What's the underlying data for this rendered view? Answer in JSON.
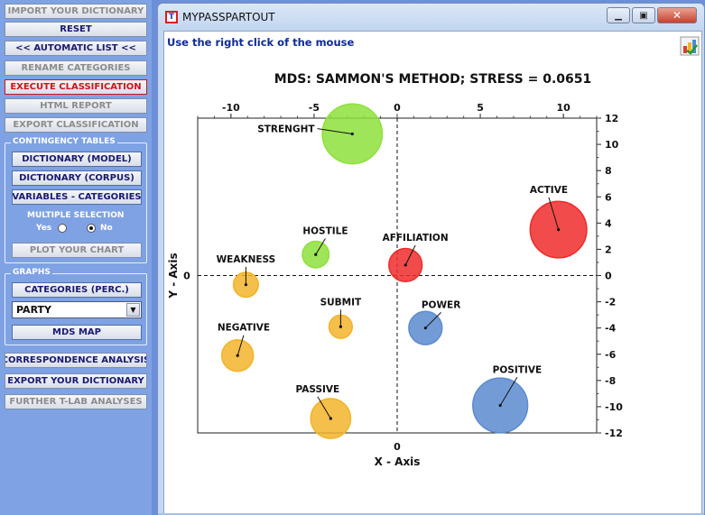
{
  "sidebar": {
    "import_dictionary": "IMPORT YOUR DICTIONARY",
    "reset": "RESET",
    "automatic_list": "<< AUTOMATIC LIST <<",
    "rename_categories": "RENAME CATEGORIES",
    "execute_classification": "EXECUTE CLASSIFICATION",
    "html_report": "HTML REPORT",
    "export_classification": "EXPORT CLASSIFICATION",
    "contingency": {
      "title": "CONTINGENCY TABLES",
      "dictionary_model": "DICTIONARY (MODEL)",
      "dictionary_corpus": "DICTIONARY (CORPUS)",
      "variables_categories": "VARIABLES - CATEGORIES",
      "multiple_selection": "MULTIPLE SELECTION",
      "yes": "Yes",
      "no": "No",
      "plot_chart": "PLOT YOUR CHART"
    },
    "graphs": {
      "title": "GRAPHS",
      "categories_perc": "CATEGORIES  (PERC.)",
      "select_value": "PARTY",
      "mds_map": "MDS MAP"
    },
    "correspondence_analysis": "CORRESPONDENCE ANALYSIS",
    "export_dictionary": "EXPORT YOUR DICTIONARY",
    "further_analyses": "FURTHER T-LAB ANALYSES"
  },
  "window": {
    "title": "MYPASSPARTOUT",
    "app_icon": "T",
    "hint": "Use the right click of the mouse",
    "icons": [
      "minimize-icon",
      "maximize-icon",
      "close-icon",
      "chart-tool-icon"
    ]
  },
  "chart_data": {
    "type": "scatter",
    "title": "MDS: SAMMON'S METHOD; STRESS = 0.0651",
    "xlabel": "X - Axis",
    "ylabel": "Y - Axis",
    "xlim": [
      -12,
      12
    ],
    "ylim": [
      -12,
      12
    ],
    "x_ticks": [
      -10,
      -5,
      0,
      5,
      10
    ],
    "y_ticks": [
      12,
      10,
      8,
      6,
      4,
      2,
      0,
      -2,
      -4,
      -6,
      -8,
      -10,
      -12
    ],
    "points": [
      {
        "label": "STRENGHT",
        "x": -2.7,
        "y": 10.8,
        "size": 3.6,
        "color": "#8ee03c"
      },
      {
        "label": "ACTIVE",
        "x": 9.7,
        "y": 3.5,
        "size": 3.4,
        "color": "#ee2b2b"
      },
      {
        "label": "HOSTILE",
        "x": -4.9,
        "y": 1.6,
        "size": 1.6,
        "color": "#8ee03c"
      },
      {
        "label": "AFFILIATION",
        "x": 0.5,
        "y": 0.8,
        "size": 2.0,
        "color": "#ee2b2b"
      },
      {
        "label": "WEAKNESS",
        "x": -9.1,
        "y": -0.7,
        "size": 1.5,
        "color": "#f2b42a"
      },
      {
        "label": "SUBMIT",
        "x": -3.4,
        "y": -3.9,
        "size": 1.4,
        "color": "#f2b42a"
      },
      {
        "label": "POWER",
        "x": 1.7,
        "y": -4.0,
        "size": 2.0,
        "color": "#5b8bcf"
      },
      {
        "label": "NEGATIVE",
        "x": -9.6,
        "y": -6.1,
        "size": 1.9,
        "color": "#f2b42a"
      },
      {
        "label": "PASSIVE",
        "x": -4.0,
        "y": -10.9,
        "size": 2.4,
        "color": "#f2b42a"
      },
      {
        "label": "POSITIVE",
        "x": 6.2,
        "y": -9.9,
        "size": 3.3,
        "color": "#5b8bcf"
      }
    ],
    "x_zero_label": "0",
    "y_zero_label": "0",
    "reference_lines": "dashed x=0 and y=0",
    "grid": false,
    "legend": "none"
  }
}
